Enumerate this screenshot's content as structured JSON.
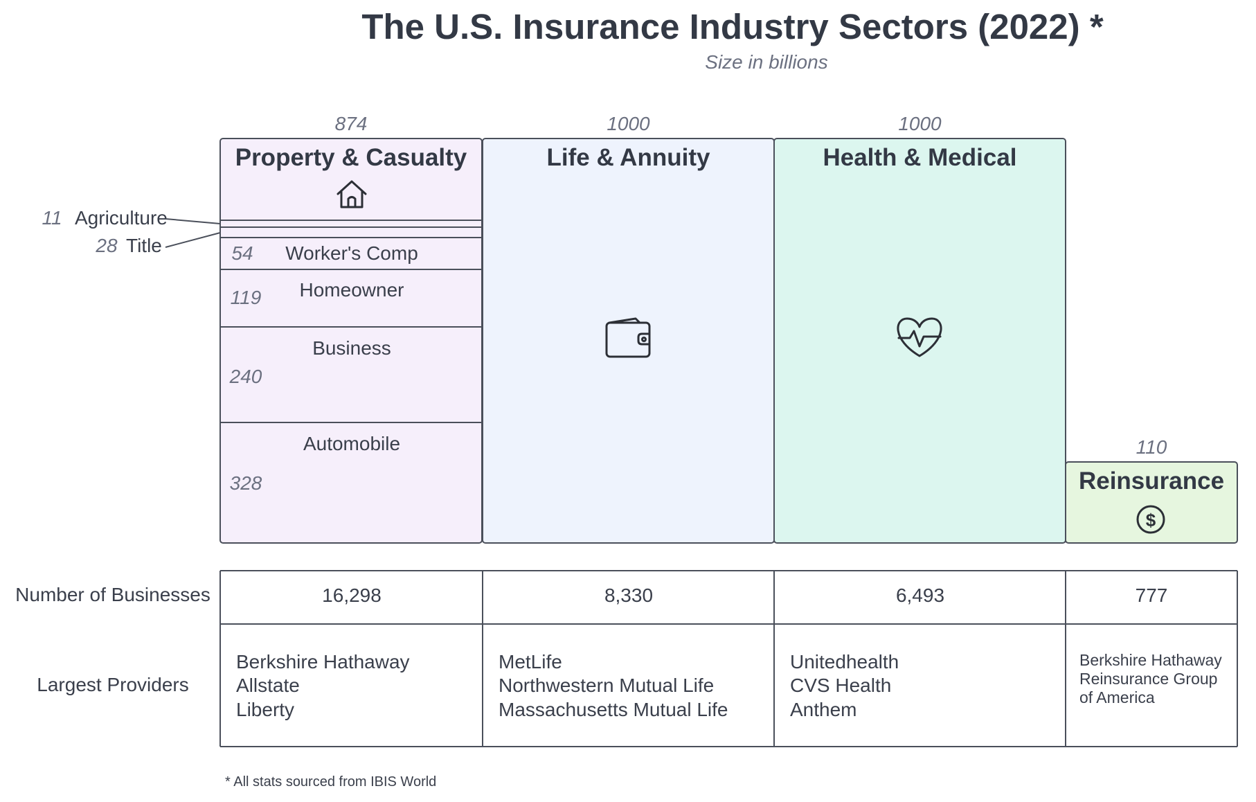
{
  "chart_data": {
    "type": "table",
    "title": "The U.S. Insurance Industry Sectors (2022) *",
    "subtitle": "Size in billions",
    "sectors": [
      {
        "name": "Property & Casualty",
        "size": 874,
        "size_label": "874",
        "color": "#f6effb",
        "icon": "house-icon"
      },
      {
        "name": "Life & Annuity",
        "size": 1000,
        "size_label": "1000",
        "color": "#eef3fd",
        "icon": "wallet-icon"
      },
      {
        "name": "Health & Medical",
        "size": 1000,
        "size_label": "1000",
        "color": "#dcf6ef",
        "icon": "heart-pulse-icon"
      },
      {
        "name": "Reinsurance",
        "size": 110,
        "size_label": "110",
        "color": "#e6f6df",
        "icon": "dollar-circle-icon"
      }
    ],
    "pc_subsectors": [
      {
        "name": "Agriculture",
        "value": 11,
        "value_label": "11"
      },
      {
        "name": "Title",
        "value": 28,
        "value_label": "28"
      },
      {
        "name": "Worker's Comp",
        "value": 54,
        "value_label": "54"
      },
      {
        "name": "Homeowner",
        "value": 119,
        "value_label": "119"
      },
      {
        "name": "Business",
        "value": 240,
        "value_label": "240"
      },
      {
        "name": "Automobile",
        "value": 328,
        "value_label": "328"
      }
    ],
    "table": {
      "row_labels": {
        "businesses": "Number of Businesses",
        "providers": "Largest Providers"
      },
      "businesses": [
        "16,298",
        "8,330",
        "6,493",
        "777"
      ],
      "providers": [
        [
          "Berkshire Hathaway",
          "Allstate",
          "Liberty"
        ],
        [
          "MetLife",
          "Northwestern Mutual Life",
          "Massachusetts Mutual Life"
        ],
        [
          "Unitedhealth",
          "CVS Health",
          "Anthem"
        ],
        [
          "Berkshire Hathaway",
          "Reinsurance Group",
          "of America"
        ]
      ]
    },
    "footnote": "* All stats sourced from IBIS World"
  }
}
